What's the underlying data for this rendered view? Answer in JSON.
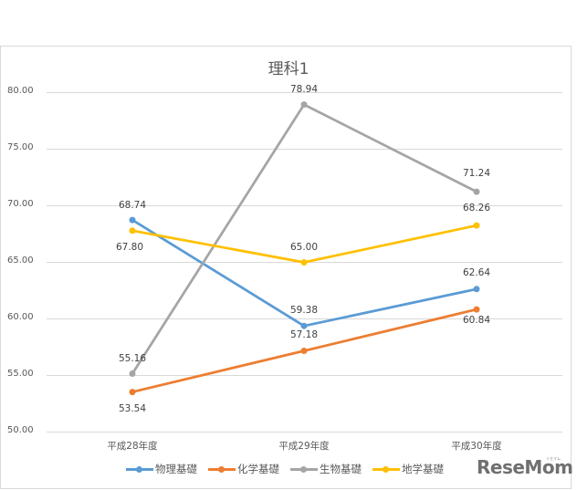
{
  "chart_data": {
    "type": "line",
    "title": "理科1",
    "xlabel": "",
    "ylabel": "",
    "ylim": [
      50,
      80
    ],
    "yticks": [
      "80.00",
      "75.00",
      "70.00",
      "65.00",
      "60.00",
      "55.00",
      "50.00"
    ],
    "grid": true,
    "legend_position": "bottom",
    "categories": [
      "平成28年度",
      "平成29年度",
      "平成30年度"
    ],
    "series": [
      {
        "name": "物理基礎",
        "color": "#5b9bd5",
        "values": [
          68.74,
          59.38,
          62.64
        ]
      },
      {
        "name": "化学基礎",
        "color": "#ed7d31",
        "values": [
          53.54,
          57.18,
          60.84
        ]
      },
      {
        "name": "生物基礎",
        "color": "#a5a5a5",
        "values": [
          55.16,
          78.94,
          71.24
        ]
      },
      {
        "name": "地学基礎",
        "color": "#ffc000",
        "values": [
          67.8,
          65.0,
          68.26
        ]
      }
    ],
    "data_labels": {
      "series0": [
        "68.74",
        "59.38",
        "62.64"
      ],
      "series1": [
        "53.54",
        "57.18",
        "60.84"
      ],
      "series2": [
        "55.16",
        "78.94",
        "71.24"
      ],
      "series3": [
        "67.80",
        "65.00",
        "68.26"
      ]
    }
  },
  "legend": {
    "items": [
      "物理基礎",
      "化学基礎",
      "生物基礎",
      "地学基礎"
    ]
  },
  "watermark": {
    "logo": "ReseMom",
    "sub": "リセマム"
  }
}
